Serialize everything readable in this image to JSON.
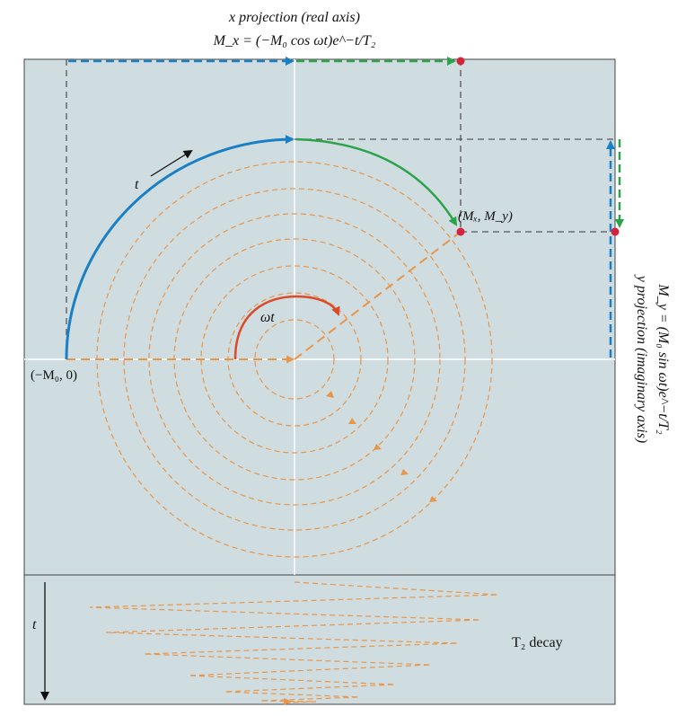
{
  "header": {
    "title": "x projection (real axis)",
    "equation": "M_x = (−M₀ cos ωt)e^−t/T₂"
  },
  "labels": {
    "start_point": "(−M₀, 0)",
    "current_point": "(Mₓ, M_y)",
    "time_arc": "t",
    "angle": "ωt",
    "time_axis": "t",
    "decay": "T₂ decay"
  },
  "side": {
    "title": "y projection (imaginary axis)",
    "equation": "M_y = (M₀ sin ωt)e^−t/T₂"
  },
  "colors": {
    "panel": "#cfdde1",
    "blue": "#1a7fc4",
    "green": "#2aa34a",
    "orange": "#e8964a",
    "red": "#dc4a2a",
    "marker": "#d4243b",
    "guide": "#555555"
  }
}
